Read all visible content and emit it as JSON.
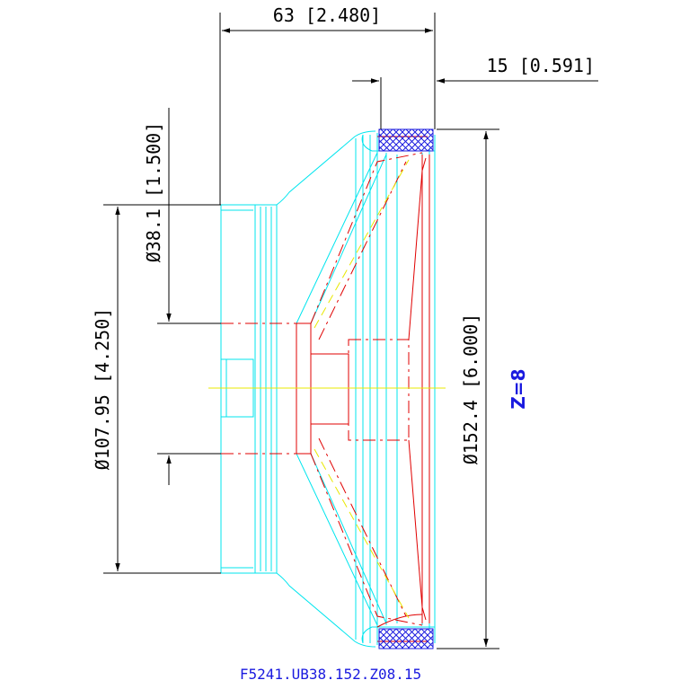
{
  "dimensions": {
    "overall_depth": "63 [2.480]",
    "gasket_depth": "15 [0.591]",
    "throat_diameter": "Ø38.1 [1.500]",
    "mount_diameter": "Ø107.95 [4.250]",
    "outer_diameter": "Ø152.4 [6.000]"
  },
  "impedance": "Z=8",
  "part_number": "F5241.UB38.152.Z08.15",
  "colors": {
    "outline": "#00e5ee",
    "hidden": "#e00000",
    "centerline": "#e8e800",
    "gasket_hatch": "#1a1adf",
    "annotation": "#1a1adf",
    "dimension": "#000000"
  }
}
